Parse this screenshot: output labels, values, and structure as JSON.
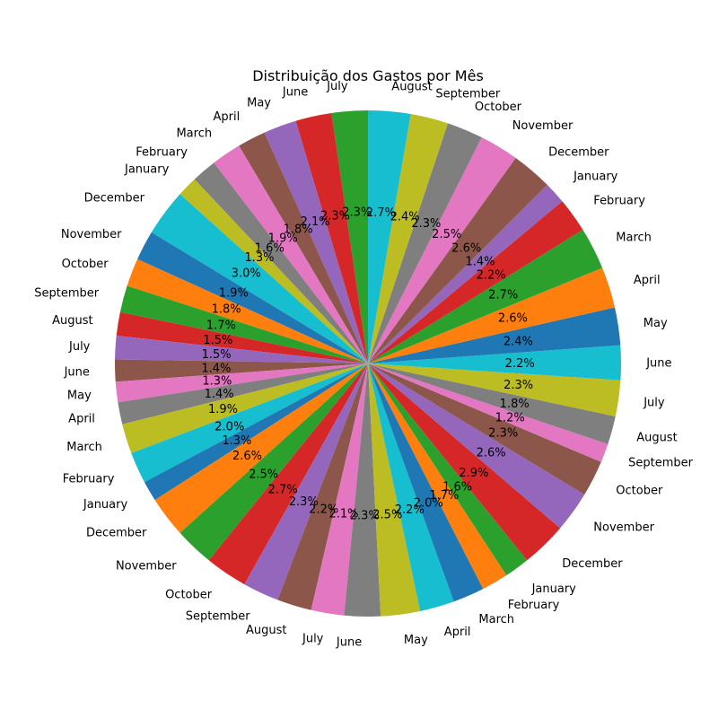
{
  "chart_data": {
    "type": "pie",
    "title": "Distribuição dos Gastos por Mês",
    "start_angle_deg": 90,
    "direction": "counterclockwise",
    "categories": [
      "July",
      "June",
      "May",
      "April",
      "March",
      "February",
      "January",
      "December",
      "November",
      "October",
      "September",
      "August",
      "July",
      "June",
      "May",
      "April",
      "March",
      "February",
      "January",
      "December",
      "November",
      "October",
      "September",
      "August",
      "July",
      "June",
      "May",
      "April",
      "March",
      "February",
      "January",
      "December",
      "November",
      "October",
      "September",
      "August",
      "July",
      "June",
      "May",
      "April",
      "March",
      "February",
      "January",
      "December",
      "November",
      "October",
      "September",
      "August"
    ],
    "values": [
      2.3,
      2.3,
      2.1,
      1.8,
      1.9,
      1.6,
      1.3,
      3.0,
      1.9,
      1.8,
      1.7,
      1.5,
      1.5,
      1.4,
      1.3,
      1.4,
      1.9,
      2.0,
      1.3,
      2.6,
      2.5,
      2.7,
      2.3,
      2.2,
      2.1,
      2.3,
      2.5,
      2.2,
      2.0,
      1.7,
      1.6,
      2.9,
      2.6,
      2.3,
      1.2,
      1.8,
      2.3,
      2.2,
      2.4,
      2.6,
      2.7,
      2.2,
      1.4,
      2.6,
      2.5,
      2.3,
      2.4,
      2.7
    ],
    "value_labels": [
      "2.3%",
      "2.3%",
      "2.1%",
      "1.8%",
      "1.9%",
      "1.6%",
      "1.3%",
      "3.0%",
      "1.9%",
      "1.8%",
      "1.7%",
      "1.5%",
      "1.5%",
      "1.4%",
      "1.3%",
      "1.4%",
      "1.9%",
      "2.0%",
      "1.3%",
      "2.6%",
      "2.5%",
      "2.7%",
      "2.3%",
      "2.2%",
      "2.1%",
      "2.3%",
      "2.5%",
      "2.2%",
      "2.0%",
      "1.7%",
      "1.6%",
      "2.9%",
      "2.6%",
      "2.3%",
      "1.2%",
      "1.8%",
      "2.3%",
      "2.2%",
      "2.4%",
      "2.6%",
      "2.7%",
      "2.2%",
      "1.4%",
      "2.6%",
      "2.5%",
      "2.3%",
      "2.4%",
      "2.7%"
    ],
    "colors": [
      "#1f77b4",
      "#ff7f0e",
      "#2ca02c",
      "#d62728",
      "#9467bd",
      "#8c564b",
      "#e377c2",
      "#7f7f7f",
      "#bcbd22",
      "#17becf"
    ],
    "first_color_index": 2,
    "legend": "none"
  }
}
